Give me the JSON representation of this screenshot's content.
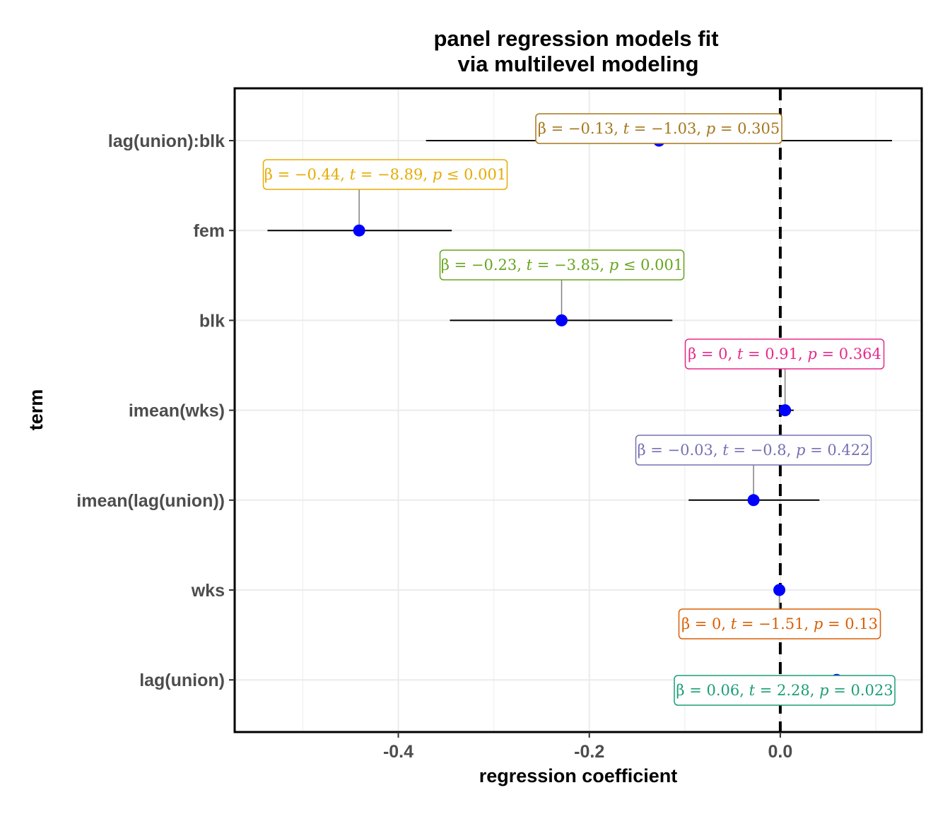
{
  "chart_data": {
    "type": "scatter",
    "subtype": "coefficient-plot",
    "title_lines": [
      "panel regression models fit",
      "via multilevel modeling"
    ],
    "xlabel": "regression coefficient",
    "ylabel": "term",
    "xlim": [
      -0.572,
      0.148
    ],
    "x_ticks": [
      {
        "value": -0.4,
        "label": "-0.4"
      },
      {
        "value": -0.2,
        "label": "-0.2"
      },
      {
        "value": 0.0,
        "label": "0.0"
      }
    ],
    "reference_line": {
      "x": 0,
      "style": "dashed"
    },
    "grid": true,
    "point_color": "#0000ff",
    "terms": [
      {
        "term": "lag(union):blk",
        "estimate": -0.127,
        "conf_low": -0.371,
        "conf_high": 0.117,
        "color": "#a6761d",
        "label": {
          "beta": "−0.13",
          "t": "−1.03",
          "p_op": "=",
          "p": "0.305"
        }
      },
      {
        "term": "fem",
        "estimate": -0.441,
        "conf_low": -0.537,
        "conf_high": -0.344,
        "color": "#e6ab02",
        "label": {
          "beta": "−0.44",
          "t": "−8.89",
          "p_op": "≤",
          "p": "0.001"
        }
      },
      {
        "term": "blk",
        "estimate": -0.229,
        "conf_low": -0.346,
        "conf_high": -0.113,
        "color": "#66a61e",
        "label": {
          "beta": "−0.23",
          "t": "−3.85",
          "p_op": "≤",
          "p": "0.001"
        }
      },
      {
        "term": "imean(wks)",
        "estimate": 0.005,
        "conf_low": -0.004,
        "conf_high": 0.014,
        "color": "#e7298a",
        "label": {
          "beta": "0",
          "t": "0.91",
          "p_op": "=",
          "p": "0.364"
        }
      },
      {
        "term": "imean(lag(union))",
        "estimate": -0.028,
        "conf_low": -0.096,
        "conf_high": 0.041,
        "color": "#7570b3",
        "label": {
          "beta": "−0.03",
          "t": "−0.8",
          "p_op": "=",
          "p": "0.422"
        }
      },
      {
        "term": "wks",
        "estimate": -0.001,
        "conf_low": -0.003,
        "conf_high": 0.0,
        "color": "#d95f02",
        "label": {
          "beta": "0",
          "t": "−1.51",
          "p_op": "=",
          "p": "0.13"
        }
      },
      {
        "term": "lag(union)",
        "estimate": 0.059,
        "conf_low": 0.008,
        "conf_high": 0.11,
        "color": "#1b9e77",
        "label": {
          "beta": "0.06",
          "t": "2.28",
          "p_op": "=",
          "p": "0.023"
        }
      }
    ]
  }
}
